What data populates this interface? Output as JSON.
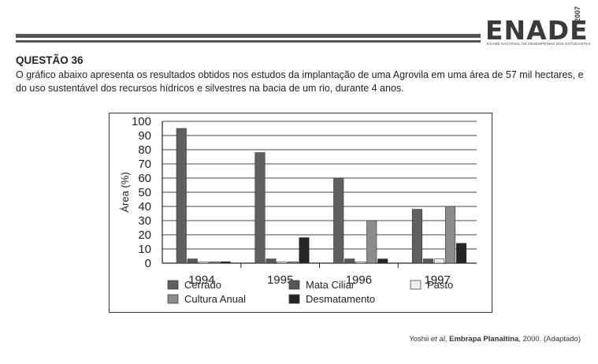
{
  "header": {
    "logo_text": "ENADE",
    "logo_year": "2007",
    "logo_subtitle": "EXAME NACIONAL DE DESEMPENHO DOS ESTUDANTES"
  },
  "question": {
    "title": "QUESTÃO 36",
    "text": "O gráfico abaixo apresenta os resultados obtidos nos estudos da implantação de uma Agrovila em uma área de 57 mil hectares, e do uso sustentável dos recursos hídricos e silvestres na bacia de um rio, durante 4 anos."
  },
  "source": {
    "authors": "Yoshii ",
    "etal": "et al",
    "sep": ", ",
    "publisher": "Embrapa Planaltina",
    "rest": ", 2000. (Adaptado)"
  },
  "chart_data": {
    "type": "bar",
    "categories": [
      "1994",
      "1995",
      "1996",
      "1997"
    ],
    "ylabel": "Área (%)",
    "ylim": [
      0,
      100
    ],
    "yticks": [
      0,
      10,
      20,
      30,
      40,
      50,
      60,
      70,
      80,
      90,
      100
    ],
    "grid": true,
    "legend_position": "bottom",
    "series": [
      {
        "name": "Cerrado",
        "color": "#5f5f5f",
        "values": [
          95,
          78,
          60,
          38
        ]
      },
      {
        "name": "Mata Ciliar",
        "color": "#585858",
        "values": [
          3,
          3,
          3,
          3
        ]
      },
      {
        "name": "Pasto",
        "color": "#eeeeee",
        "values": [
          1,
          1,
          1,
          3
        ]
      },
      {
        "name": "Cultura Anual",
        "color": "#8c8c8c",
        "values": [
          1,
          1,
          30,
          40
        ]
      },
      {
        "name": "Desmatamento",
        "color": "#262626",
        "values": [
          1,
          18,
          3,
          14
        ]
      }
    ]
  }
}
